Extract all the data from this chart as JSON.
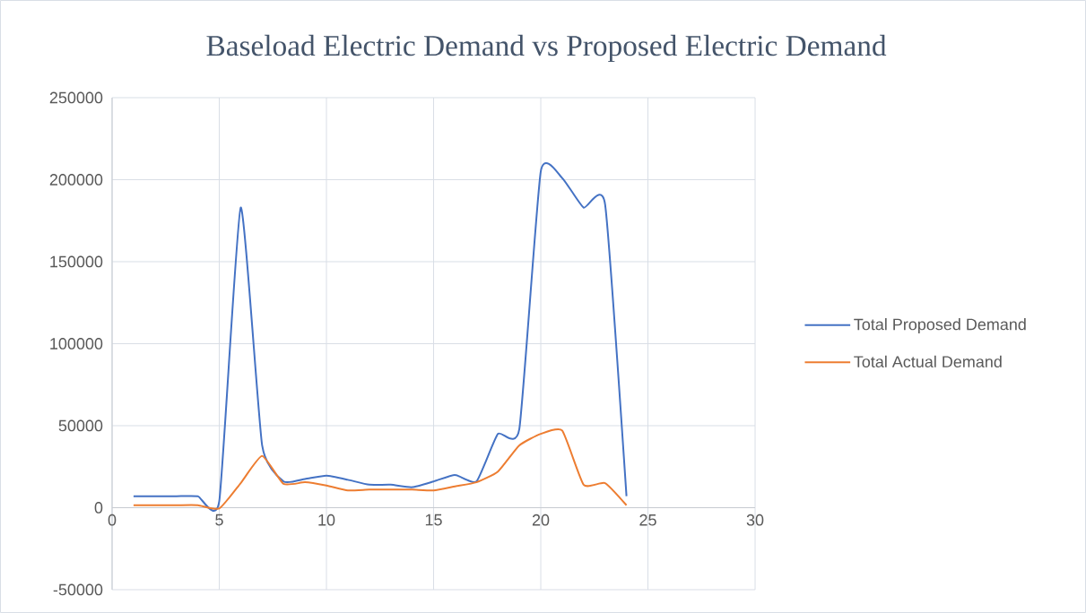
{
  "chart_data": {
    "type": "line",
    "title": "Baseload Electric Demand vs Proposed Electric Demand",
    "x": [
      1,
      2,
      3,
      4,
      5,
      6,
      7,
      8,
      9,
      10,
      11,
      12,
      13,
      14,
      15,
      16,
      17,
      18,
      19,
      20,
      21,
      22,
      23,
      24
    ],
    "series": [
      {
        "name": "Total Proposed Demand",
        "color": "#4472c4",
        "values": [
          7000,
          7000,
          7000,
          7000,
          4000,
          183000,
          38000,
          16000,
          17500,
          19500,
          17000,
          14000,
          14000,
          12500,
          16000,
          20000,
          16000,
          45000,
          48000,
          205000,
          201000,
          183000,
          185000,
          7000
        ]
      },
      {
        "name": "Total Actual Demand",
        "color": "#ed7d31",
        "values": [
          1500,
          1500,
          1500,
          1500,
          -500,
          15000,
          31500,
          14500,
          15500,
          13500,
          10500,
          11000,
          11000,
          11000,
          10500,
          13000,
          15500,
          22000,
          38000,
          45000,
          47000,
          14000,
          15000,
          1500
        ]
      }
    ],
    "xlim": [
      0,
      30
    ],
    "xticks": [
      0,
      5,
      10,
      15,
      20,
      25,
      30
    ],
    "ylim": [
      -50000,
      250000
    ],
    "yticks": [
      -50000,
      0,
      50000,
      100000,
      150000,
      200000,
      250000
    ],
    "grid": true,
    "legend": "right",
    "marker": "none",
    "line_style": "solid"
  }
}
